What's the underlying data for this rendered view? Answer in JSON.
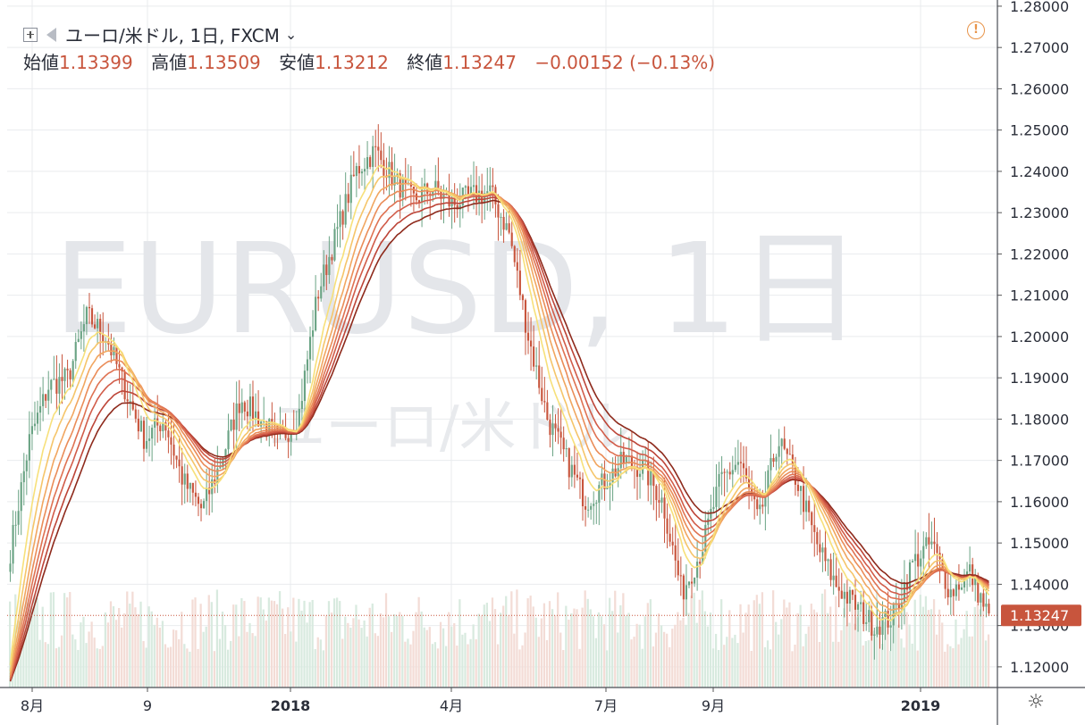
{
  "header": {
    "symbol_title": "ユーロ/米ドル, 1日, FXCM",
    "dropdown_glyph": "⌄",
    "ohlc": {
      "open_label": "始値",
      "open_value": "1.13399",
      "high_label": "高値",
      "high_value": "1.13509",
      "low_label": "安値",
      "low_value": "1.13212",
      "close_label": "終値",
      "close_value": "1.13247",
      "change": "−0.00152 (−0.13%)"
    }
  },
  "watermark": {
    "line1": "EURUSD, 1日",
    "line2": "ユーロ/米ドル"
  },
  "alert_glyph": "!",
  "settings_glyph": "☼",
  "colors": {
    "up": "#6aa384",
    "down": "#c8553d",
    "grid": "#e9ebee",
    "price_tag": "#c8553d"
  },
  "chart_data": {
    "type": "candlestick",
    "yaxis": {
      "min": 1.115,
      "max": 1.2815,
      "ticks": [
        "1.12000",
        "1.13000",
        "1.14000",
        "1.15000",
        "1.16000",
        "1.17000",
        "1.18000",
        "1.19000",
        "1.20000",
        "1.21000",
        "1.22000",
        "1.23000",
        "1.24000",
        "1.25000",
        "1.26000",
        "1.27000",
        "1.28000"
      ]
    },
    "xaxis_labels": [
      "8月",
      "9",
      "2018",
      "4月",
      "7月",
      "9月",
      "2019"
    ],
    "last_price": "1.13247",
    "close_path": [
      1.148,
      1.175,
      1.188,
      1.19,
      1.205,
      1.2,
      1.187,
      1.175,
      1.18,
      1.165,
      1.158,
      1.17,
      1.185,
      1.18,
      1.175,
      1.18,
      1.21,
      1.225,
      1.24,
      1.245,
      1.238,
      1.233,
      1.236,
      1.232,
      1.234,
      1.235,
      1.225,
      1.2,
      1.18,
      1.17,
      1.16,
      1.165,
      1.17,
      1.168,
      1.16,
      1.138,
      1.148,
      1.165,
      1.17,
      1.155,
      1.175,
      1.165,
      1.15,
      1.14,
      1.135,
      1.13,
      1.132,
      1.145,
      1.15,
      1.138,
      1.143,
      1.132
    ],
    "ma_series": [
      {
        "period": 10,
        "color": "#f7e07a"
      },
      {
        "period": 14,
        "color": "#f5c56a"
      },
      {
        "period": 18,
        "color": "#f1a660"
      },
      {
        "period": 22,
        "color": "#ea8c58"
      },
      {
        "period": 26,
        "color": "#df7252"
      },
      {
        "period": 30,
        "color": "#d15c49"
      },
      {
        "period": 35,
        "color": "#bd4538"
      },
      {
        "period": 40,
        "color": "#8e2a1c"
      }
    ]
  }
}
